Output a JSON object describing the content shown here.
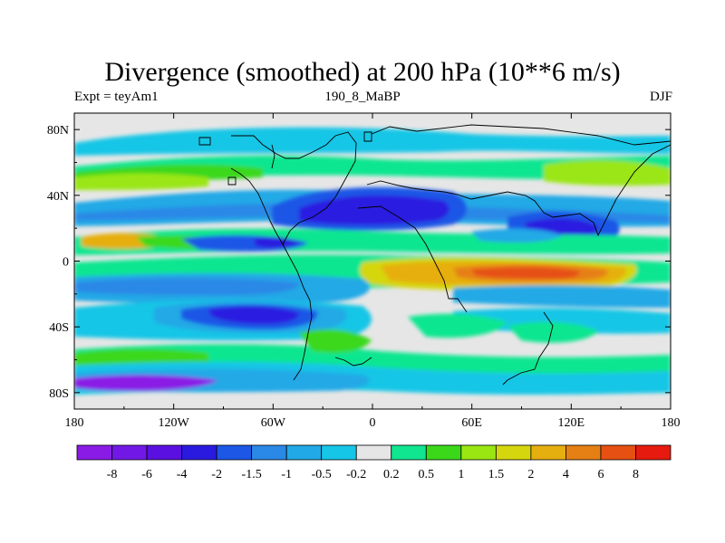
{
  "chart_data": {
    "type": "heatmap",
    "title": "Divergence (smoothed) at 200 hPa (10**6 m/s)",
    "left_label": "Expt = teyAm1",
    "center_label": "190_8_MaBP",
    "right_label": "DJF",
    "x_range": [
      -180,
      180
    ],
    "y_range": [
      -90,
      90
    ],
    "x_ticks": [
      {
        "value": -180,
        "label": "180"
      },
      {
        "value": -120,
        "label": "120W"
      },
      {
        "value": -60,
        "label": "60W"
      },
      {
        "value": 0,
        "label": "0"
      },
      {
        "value": 60,
        "label": "60E"
      },
      {
        "value": 120,
        "label": "120E"
      },
      {
        "value": 180,
        "label": "180"
      }
    ],
    "y_ticks": [
      {
        "value": 80,
        "label": "80N"
      },
      {
        "value": 40,
        "label": "40N"
      },
      {
        "value": 0,
        "label": "0"
      },
      {
        "value": -40,
        "label": "40S"
      },
      {
        "value": -80,
        "label": "80S"
      }
    ],
    "colorbar": {
      "colors": [
        "#8A1BE6",
        "#7118E6",
        "#5A10E0",
        "#2A1AE0",
        "#1C57E6",
        "#2A88E6",
        "#20A9E6",
        "#16C6E6",
        "#E6E6E6",
        "#10E690",
        "#3BD81A",
        "#9AE612",
        "#D6D60E",
        "#E6AF10",
        "#E68014",
        "#E65012",
        "#E61A0E"
      ],
      "labels": [
        "-8",
        "-6",
        "-4",
        "-2",
        "-1.5",
        "-1",
        "-0.5",
        "-0.2",
        "0.2",
        "0.5",
        "1",
        "1.5",
        "2",
        "4",
        "6",
        "8"
      ]
    },
    "features": [
      {
        "lon": -135,
        "lat": -11,
        "w": 30,
        "h": 8,
        "level": 11
      },
      {
        "lon": -120,
        "lat": -40,
        "w": 36,
        "h": 8,
        "level": 9
      },
      {
        "lon": -145,
        "lat": -62,
        "w": 40,
        "h": 12,
        "level": 10
      },
      {
        "lon": -60,
        "lat": -3,
        "w": 60,
        "h": 7,
        "level": 3
      },
      {
        "lon": -20,
        "lat": 24,
        "w": 40,
        "h": 12,
        "level": 2
      },
      {
        "lon": -50,
        "lat": 28,
        "w": 30,
        "h": 12,
        "level": 3
      },
      {
        "lon": -43,
        "lat": -36,
        "w": 38,
        "h": 10,
        "level": 2
      },
      {
        "lon": -15,
        "lat": -53,
        "w": 14,
        "h": 7,
        "level": 10
      },
      {
        "lon": 35,
        "lat": -14,
        "w": 24,
        "h": 12,
        "level": 13
      },
      {
        "lon": 80,
        "lat": -10,
        "w": 55,
        "h": 10,
        "level": 15
      },
      {
        "lon": 110,
        "lat": 16,
        "w": 22,
        "h": 10,
        "level": 3
      },
      {
        "lon": 100,
        "lat": -45,
        "w": 30,
        "h": 9,
        "level": 10
      },
      {
        "lon": -60,
        "lat": 57,
        "w": 50,
        "h": 8,
        "level": 11
      },
      {
        "lon": 80,
        "lat": 48,
        "w": 30,
        "h": 10,
        "level": 11
      }
    ]
  }
}
